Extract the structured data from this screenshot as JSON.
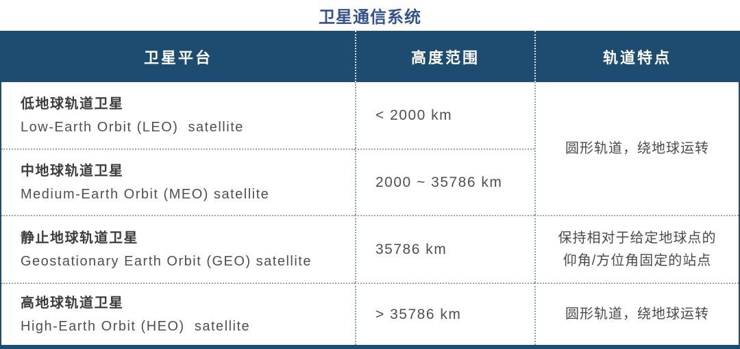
{
  "title": "卫星通信系统",
  "columns": {
    "platform": "卫星平台",
    "altitude": "高度范围",
    "orbit": "轨道特点"
  },
  "rows": [
    {
      "cn": "低地球轨道卫星",
      "en": "Low-Earth Orbit (LEO)  satellite",
      "altitude": "< 2000 km"
    },
    {
      "cn": "中地球轨道卫星",
      "en": "Medium-Earth Orbit (MEO) satellite",
      "altitude": "2000 ~ 35786 km"
    },
    {
      "cn": "静止地球轨道卫星",
      "en": "Geostationary Earth Orbit (GEO) satellite",
      "altitude": "35786 km",
      "orbit_lines": [
        "保持相对于给定地球点的",
        "仰角/方位角固定的站点"
      ]
    },
    {
      "cn": "高地球轨道卫星",
      "en": "High-Earth Orbit (HEO)  satellite",
      "altitude": "> 35786 km",
      "orbit": "圆形轨道，绕地球运转"
    }
  ],
  "merged_cells": {
    "orbit_rows_1_2": "圆形轨道，绕地球运转"
  },
  "colors": {
    "header_bg": "#1E4C70",
    "header_text": "#FFFFFF",
    "title_text": "#34518E",
    "cn_text": "#3C3C3C",
    "body_text": "#4F4F4F",
    "vertical_divider": "#8BA0B4",
    "horizontal_divider": "#A6A6A6",
    "outer_border": "#1E4C70"
  }
}
